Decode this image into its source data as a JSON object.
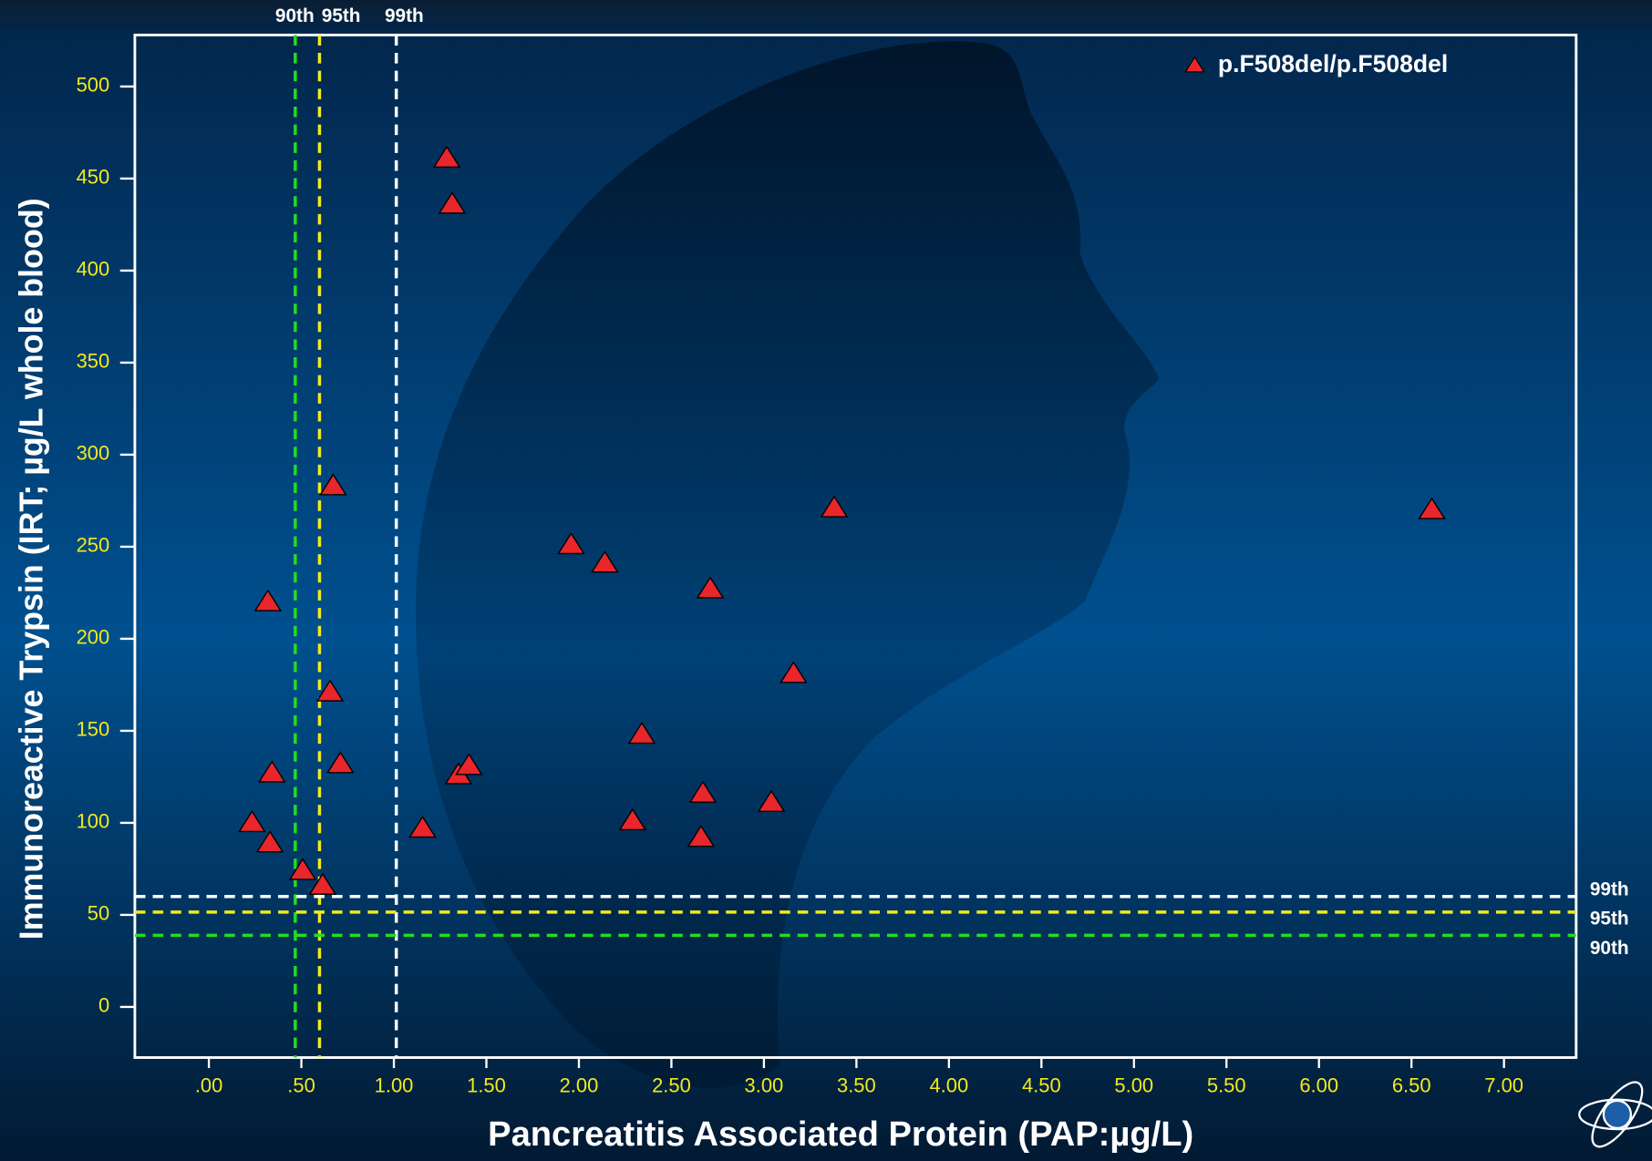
{
  "chart_data": {
    "type": "scatter",
    "x_label": "Pancreatitis Associated Protein (PAP:µg/L)",
    "y_label": "Immunoreactive Trypsin (IRT; µg/L whole blood)",
    "xlim": [
      -0.4,
      7.39
    ],
    "ylim": [
      -27.5,
      528
    ],
    "xticks": [
      {
        "value": 0,
        "label": ".00"
      },
      {
        "value": 0.5,
        "label": ".50"
      },
      {
        "value": 1,
        "label": "1.00"
      },
      {
        "value": 1.5,
        "label": "1.50"
      },
      {
        "value": 2,
        "label": "2.00"
      },
      {
        "value": 2.5,
        "label": "2.50"
      },
      {
        "value": 3,
        "label": "3.00"
      },
      {
        "value": 3.5,
        "label": "3.50"
      },
      {
        "value": 4,
        "label": "4.00"
      },
      {
        "value": 4.5,
        "label": "4.50"
      },
      {
        "value": 5,
        "label": "5.00"
      },
      {
        "value": 5.5,
        "label": "5.50"
      },
      {
        "value": 6,
        "label": "6.00"
      },
      {
        "value": 6.5,
        "label": "6.50"
      },
      {
        "value": 7,
        "label": "7.00"
      }
    ],
    "yticks": [
      0,
      50,
      100,
      150,
      200,
      250,
      300,
      350,
      400,
      450,
      500
    ],
    "legend": "top-right",
    "series": [
      {
        "name": "p.F508del/p.F508del",
        "color": "#e8262b",
        "x": [
          1.286,
          1.315,
          0.672,
          0.319,
          0.655,
          0.341,
          0.711,
          0.233,
          0.33,
          0.507,
          0.615,
          1.155,
          1.349,
          1.406,
          1.958,
          2.14,
          2.71,
          3.38,
          3.16,
          2.34,
          2.67,
          2.29,
          2.66,
          3.04,
          6.61
        ],
        "values": [
          461,
          436,
          283,
          220,
          171,
          127,
          132,
          100,
          89,
          74,
          66,
          97,
          126,
          131,
          251,
          241,
          227,
          271,
          181,
          148,
          116,
          101,
          92,
          111,
          270
        ]
      }
    ],
    "x_thresholds": [
      {
        "label": "90th",
        "value": 0.467,
        "color": "#22dd22"
      },
      {
        "label": "95th",
        "value": 0.598,
        "color": "#f2ea1d"
      },
      {
        "label": "99th",
        "value": 1.013,
        "color": "#ffffff"
      }
    ],
    "y_thresholds": [
      {
        "label": "99th",
        "value": 60,
        "color": "#ffffff"
      },
      {
        "label": "95th",
        "value": 51.5,
        "color": "#f2ea1d"
      },
      {
        "label": "90th",
        "value": 38.9,
        "color": "#22dd22"
      }
    ]
  }
}
